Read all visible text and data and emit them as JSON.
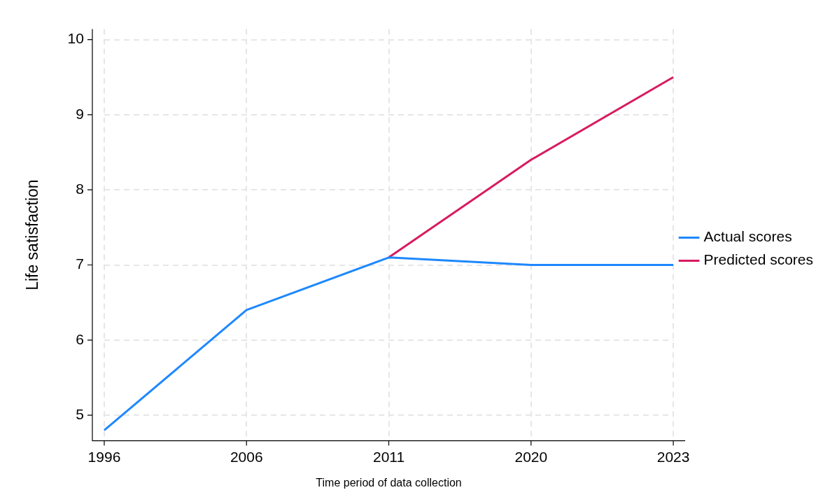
{
  "chart_data": {
    "type": "line",
    "xlabel": "Time period of data collection",
    "ylabel": "Life satisfaction",
    "categories": [
      "1996",
      "2006",
      "2011",
      "2020",
      "2023"
    ],
    "series": [
      {
        "name": "Actual scores",
        "color": "#1e88ff",
        "values": [
          4.8,
          6.4,
          7.1,
          7.0,
          7.0
        ]
      },
      {
        "name": "Predicted scores",
        "color": "#d81b60",
        "values": [
          null,
          null,
          7.1,
          8.4,
          9.5
        ]
      }
    ],
    "ylim": [
      4.66,
      10.14
    ],
    "yticks": [
      5,
      6,
      7,
      8,
      9,
      10
    ],
    "grid": true,
    "legend": "right",
    "marker": "none",
    "line_style": "solid"
  }
}
